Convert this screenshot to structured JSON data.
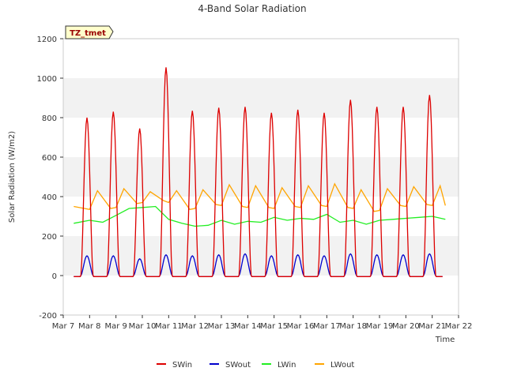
{
  "chart_data": {
    "type": "line",
    "title": "4-Band Solar Radiation",
    "xlabel": "Time",
    "ylabel": "Solar Radiation (W/m2)",
    "site_label": "TZ_tmet",
    "ylim": [
      -200,
      1200
    ],
    "yticks": [
      -200,
      0,
      200,
      400,
      600,
      800,
      1000,
      1200
    ],
    "xlim": [
      0,
      15
    ],
    "xticks": [
      "Mar 7",
      "Mar 8",
      "Mar 9",
      "Mar 10",
      "Mar 11",
      "Mar 12",
      "Mar 13",
      "Mar 14",
      "Mar 15",
      "Mar 16",
      "Mar 17",
      "Mar 18",
      "Mar 19",
      "Mar 20",
      "Mar 21",
      "Mar 22"
    ],
    "grid": "horizontal bands",
    "legend_position": "bottom-center",
    "series": [
      {
        "name": "SWin",
        "color": "#dd0000",
        "daily_peak": [
          800,
          830,
          745,
          1055,
          835,
          850,
          855,
          825,
          840,
          825,
          890,
          855,
          855,
          915
        ]
      },
      {
        "name": "SWout",
        "color": "#0000cc",
        "daily_peak": [
          100,
          100,
          85,
          105,
          100,
          105,
          110,
          100,
          105,
          100,
          110,
          105,
          105,
          110
        ]
      },
      {
        "name": "LWin",
        "color": "#22ee22",
        "x": [
          0.4,
          1.0,
          1.5,
          2.0,
          2.5,
          3.0,
          3.5,
          4.0,
          4.5,
          5.0,
          5.5,
          6.0,
          6.5,
          7.0,
          7.5,
          8.0,
          8.5,
          9.0,
          9.5,
          10.0,
          10.5,
          11.0,
          11.5,
          12.0,
          12.5,
          13.0,
          13.5,
          14.0,
          14.5
        ],
        "y": [
          265,
          280,
          270,
          305,
          340,
          345,
          350,
          285,
          265,
          250,
          255,
          280,
          260,
          275,
          270,
          295,
          280,
          290,
          285,
          310,
          270,
          280,
          260,
          280,
          285,
          290,
          295,
          300,
          285
        ]
      },
      {
        "name": "LWout",
        "color": "#ffa500",
        "x": [
          0.4,
          0.8,
          1.0,
          1.3,
          1.8,
          2.0,
          2.3,
          2.8,
          3.0,
          3.3,
          3.8,
          4.0,
          4.3,
          4.8,
          5.0,
          5.3,
          5.8,
          6.0,
          6.3,
          6.8,
          7.0,
          7.3,
          7.8,
          8.0,
          8.3,
          8.8,
          9.0,
          9.3,
          9.8,
          10.0,
          10.3,
          10.8,
          11.0,
          11.3,
          11.8,
          12.0,
          12.3,
          12.8,
          13.0,
          13.3,
          13.8,
          14.0,
          14.3,
          14.5
        ],
        "y": [
          350,
          340,
          335,
          430,
          340,
          345,
          440,
          365,
          370,
          425,
          380,
          370,
          430,
          335,
          340,
          435,
          360,
          355,
          460,
          350,
          345,
          455,
          345,
          340,
          445,
          350,
          345,
          455,
          355,
          350,
          465,
          345,
          340,
          435,
          325,
          330,
          440,
          355,
          350,
          450,
          360,
          355,
          455,
          355
        ]
      }
    ]
  }
}
